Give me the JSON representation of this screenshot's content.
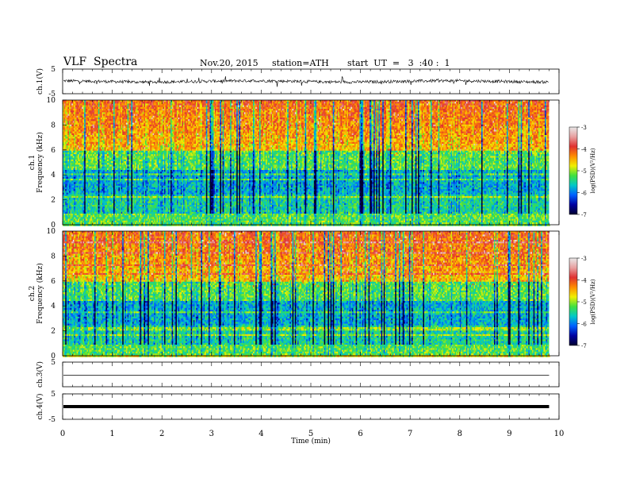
{
  "header": {
    "title": "VLF  Spectra",
    "date": "Nov.20, 2015",
    "station": "station=ATH",
    "start": "start  UT  =   3  :40 :  1"
  },
  "colorscale": {
    "label": "log(PSD)(V²/Hz)",
    "ticks": [
      "-3",
      "-4",
      "-5",
      "-6",
      "-7"
    ],
    "stops": [
      "#e8e8e8",
      "#e8a0a0",
      "#e03030",
      "#ff8c00",
      "#f0f000",
      "#40e040",
      "#00c8c8",
      "#0060ff",
      "#0000a0",
      "#000030"
    ]
  },
  "chart_data": [
    {
      "id": "ch1-waveform",
      "type": "line",
      "ylabel": "ch.1(V)",
      "ylim": [
        -5,
        5
      ],
      "y_ticks": [
        "5",
        "-5"
      ],
      "description_values": "noisy waveform around 0 V with amplitude about 1 V"
    },
    {
      "id": "ch1-spectrogram",
      "type": "heatmap",
      "ylabel": "ch.1\nFrequency  (kHz)",
      "ylim": [
        0,
        10
      ],
      "y_ticks": [
        "0",
        "2",
        "4",
        "6",
        "8",
        "10"
      ],
      "colorbar_ticks": [
        "-3",
        "-4",
        "-5",
        "-6",
        "-7"
      ],
      "colorbar_label": "log(PSD)(V²/Hz)"
    },
    {
      "id": "ch2-spectrogram",
      "type": "heatmap",
      "ylabel": "ch.2\nFrequency  (kHz)",
      "ylim": [
        0,
        10
      ],
      "y_ticks": [
        "0",
        "2",
        "4",
        "6",
        "8",
        "10"
      ],
      "colorbar_ticks": [
        "-3",
        "-4",
        "-5",
        "-6",
        "-7"
      ],
      "colorbar_label": "log(PSD)(V²/Hz)"
    },
    {
      "id": "ch3-waveform",
      "type": "line",
      "ylabel": "ch.3(V)",
      "ylim": [
        -5,
        5
      ],
      "y_ticks": [
        "5"
      ],
      "values_note": "flat line near 0 V"
    },
    {
      "id": "ch4-waveform",
      "type": "line",
      "ylabel": "ch.4(V)",
      "ylim": [
        -5,
        5
      ],
      "y_ticks": [
        "5",
        "-5"
      ],
      "values_note": "thick flat line near 0 V"
    }
  ],
  "xaxis": {
    "label": "Time  (min)",
    "range": [
      0,
      10
    ],
    "ticks": [
      "0",
      "1",
      "2",
      "3",
      "4",
      "5",
      "6",
      "7",
      "8",
      "9",
      "10"
    ],
    "data_end": 9.8
  }
}
